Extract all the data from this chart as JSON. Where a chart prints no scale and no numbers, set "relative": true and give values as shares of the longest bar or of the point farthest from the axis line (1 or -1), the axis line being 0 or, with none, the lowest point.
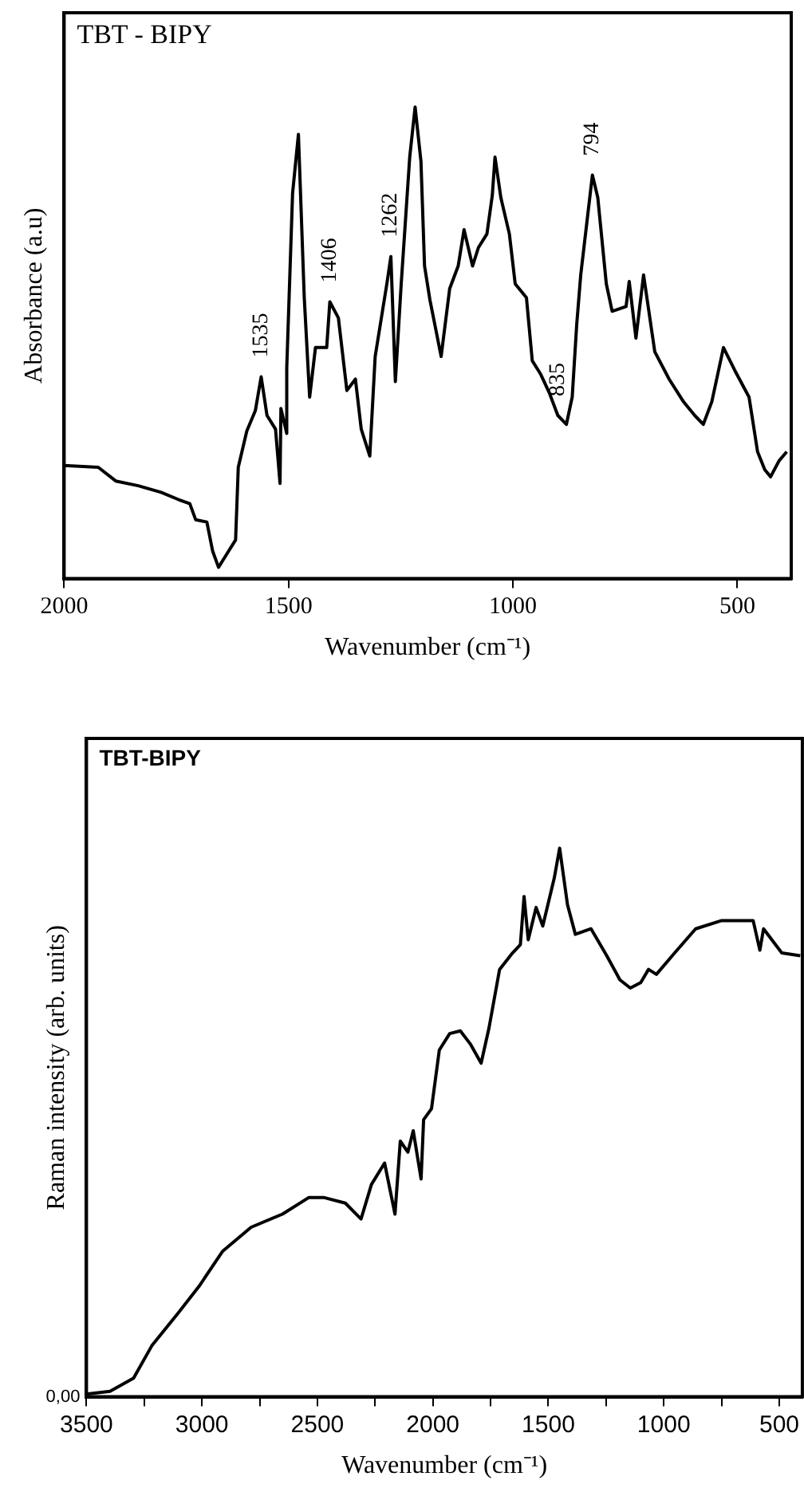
{
  "chart_data": [
    {
      "type": "line",
      "title": "TBT - BIPY",
      "xlabel": "Wavenumber (cm⁻¹)",
      "ylabel": "Absorbance (a.u)",
      "relative": true,
      "tick_labels": "x",
      "grid": false,
      "legend": false,
      "marker": "none",
      "line_style": "solid",
      "xlim": [
        2000,
        380
      ],
      "xticks": [
        2000,
        1500,
        1000,
        500
      ],
      "annotations": [
        {
          "text": "1535",
          "x": 1561,
          "y": 0.428
        },
        {
          "text": "1406",
          "x": 1408,
          "y": 0.587
        },
        {
          "text": "1262",
          "x": 1272,
          "y": 0.683
        },
        {
          "text": "835",
          "x": 900,
          "y": 0.346
        },
        {
          "text": "794",
          "x": 823,
          "y": 0.856
        }
      ],
      "series": [
        {
          "color": "#000000",
          "x": [
            2000,
            1924,
            1885,
            1835,
            1784,
            1746,
            1720,
            1707,
            1682,
            1669,
            1656,
            1637,
            1618,
            1612,
            1593,
            1574,
            1561,
            1548,
            1529,
            1519,
            1517,
            1504,
            1504,
            1491,
            1478,
            1465,
            1453,
            1440,
            1415,
            1408,
            1389,
            1370,
            1351,
            1338,
            1319,
            1307,
            1294,
            1281,
            1272,
            1262,
            1249,
            1230,
            1218,
            1205,
            1197,
            1185,
            1172,
            1160,
            1141,
            1122,
            1109,
            1090,
            1077,
            1058,
            1046,
            1040,
            1027,
            1008,
            995,
            970,
            957,
            938,
            919,
            900,
            881,
            868,
            858,
            849,
            823,
            811,
            792,
            779,
            748,
            741,
            726,
            709,
            684,
            652,
            620,
            595,
            576,
            557,
            531,
            506,
            474,
            455,
            439,
            426,
            407,
            390
          ],
          "values": [
            0.24,
            0.236,
            0.207,
            0.197,
            0.183,
            0.168,
            0.159,
            0.125,
            0.12,
            0.058,
            0.024,
            0.053,
            0.082,
            0.236,
            0.313,
            0.356,
            0.428,
            0.346,
            0.317,
            0.202,
            0.361,
            0.308,
            0.447,
            0.817,
            0.942,
            0.596,
            0.385,
            0.49,
            0.49,
            0.587,
            0.553,
            0.399,
            0.423,
            0.317,
            0.26,
            0.471,
            0.548,
            0.625,
            0.683,
            0.418,
            0.625,
            0.894,
            1.0,
            0.885,
            0.663,
            0.591,
            0.529,
            0.471,
            0.615,
            0.663,
            0.74,
            0.663,
            0.702,
            0.731,
            0.813,
            0.894,
            0.808,
            0.731,
            0.625,
            0.596,
            0.462,
            0.433,
            0.394,
            0.346,
            0.327,
            0.385,
            0.538,
            0.644,
            0.856,
            0.808,
            0.625,
            0.567,
            0.577,
            0.63,
            0.51,
            0.644,
            0.481,
            0.423,
            0.375,
            0.346,
            0.327,
            0.375,
            0.49,
            0.442,
            0.385,
            0.269,
            0.231,
            0.216,
            0.25,
            0.269
          ]
        }
      ]
    },
    {
      "type": "line",
      "title": "TBT-BIPY",
      "xlabel": "Wavenumber (cm⁻¹)",
      "ylabel": "Raman intensity (arb. units)",
      "relative": true,
      "grid": false,
      "legend": false,
      "marker": "none",
      "line_style": "solid",
      "xlim": [
        3500,
        400
      ],
      "xticks": [
        3500,
        {
          "value": 3250,
          "label": null
        },
        3000,
        {
          "value": 2750,
          "label": null
        },
        2500,
        {
          "value": 2250,
          "label": null
        },
        2000,
        {
          "value": 1750,
          "label": null
        },
        1500,
        {
          "value": 1250,
          "label": null
        },
        1000,
        {
          "value": 750,
          "label": null
        },
        500
      ],
      "annotations": [
        "0,00"
      ],
      "series": [
        {
          "color": "#000000",
          "x": [
            3500,
            3398,
            3296,
            3217,
            3104,
            3013,
            2911,
            2787,
            2651,
            2538,
            2470,
            2379,
            2311,
            2266,
            2209,
            2164,
            2141,
            2108,
            2085,
            2051,
            2040,
            2006,
            1972,
            1927,
            1881,
            1836,
            1791,
            1757,
            1711,
            1655,
            1621,
            1605,
            1587,
            1553,
            1524,
            1474,
            1451,
            1417,
            1383,
            1315,
            1247,
            1190,
            1145,
            1100,
            1066,
            1032,
            953,
            862,
            749,
            613,
            584,
            568,
            489,
            409
          ],
          "values": [
            0.005,
            0.01,
            0.034,
            0.093,
            0.152,
            0.201,
            0.265,
            0.309,
            0.333,
            0.363,
            0.363,
            0.353,
            0.324,
            0.387,
            0.426,
            0.333,
            0.466,
            0.446,
            0.485,
            0.397,
            0.505,
            0.525,
            0.632,
            0.662,
            0.667,
            0.642,
            0.608,
            0.672,
            0.779,
            0.809,
            0.824,
            0.912,
            0.833,
            0.892,
            0.858,
            0.946,
            1.0,
            0.897,
            0.843,
            0.853,
            0.804,
            0.76,
            0.745,
            0.755,
            0.779,
            0.77,
            0.809,
            0.853,
            0.868,
            0.868,
            0.814,
            0.853,
            0.809,
            0.804
          ]
        }
      ]
    }
  ]
}
